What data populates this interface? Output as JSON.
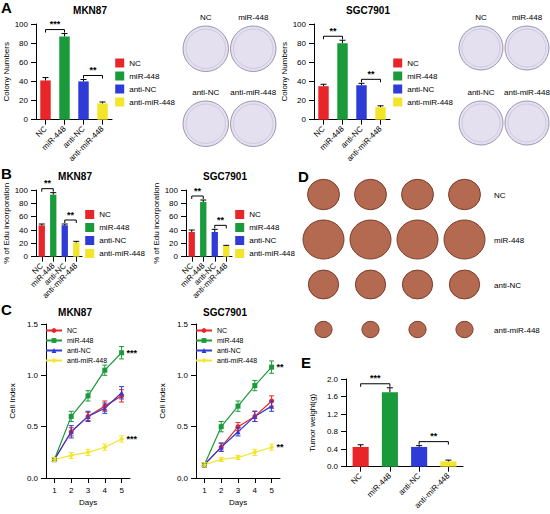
{
  "chart_data": [
    {
      "panel": "A",
      "type": "bar",
      "title": "MKN87",
      "y_label": "Colony Numbers",
      "categories": [
        "NC",
        "miR-448",
        "anti-NC",
        "anti-miR-448"
      ],
      "values": [
        41,
        87,
        40,
        17
      ],
      "errors": [
        3,
        3,
        2,
        1.5
      ],
      "colors": [
        "#e8262a",
        "#1a9a3a",
        "#2f3bd6",
        "#f2e52a"
      ],
      "ylim": [
        0,
        100
      ],
      "yticks": [
        0,
        20,
        40,
        60,
        80,
        100
      ],
      "grid": false,
      "legend": "right",
      "annotations": [
        {
          "text": "***",
          "between": [
            "NC",
            "miR-448"
          ]
        },
        {
          "text": "**",
          "between": [
            "anti-NC",
            "anti-miR-448"
          ]
        }
      ]
    },
    {
      "type": "bar",
      "title": "SGC7901",
      "y_label": "Colony Numbers",
      "categories": [
        "NC",
        "miR-448",
        "anti-NC",
        "anti-miR-448"
      ],
      "values": [
        35,
        80,
        36,
        13
      ],
      "errors": [
        2,
        3,
        2,
        1.5
      ],
      "colors": [
        "#e8262a",
        "#1a9a3a",
        "#2f3bd6",
        "#f2e52a"
      ],
      "ylim": [
        0,
        100
      ],
      "yticks": [
        0,
        20,
        40,
        60,
        80,
        100
      ],
      "grid": false,
      "legend": "right",
      "annotations": [
        {
          "text": "**",
          "between": [
            "NC",
            "miR-448"
          ]
        },
        {
          "text": "**",
          "between": [
            "anti-NC",
            "anti-miR-448"
          ]
        }
      ]
    },
    {
      "panel": "B",
      "type": "bar",
      "title": "MKN87",
      "y_label": "% of Edu incorporation",
      "categories": [
        "NC",
        "miR-448",
        "anti-NC",
        "anti-miR-448"
      ],
      "values": [
        47,
        93,
        47,
        21
      ],
      "errors": [
        2,
        3,
        2,
        2
      ],
      "colors": [
        "#e8262a",
        "#1a9a3a",
        "#2f3bd6",
        "#f2e52a"
      ],
      "ylim": [
        0,
        100
      ],
      "yticks": [
        0,
        20,
        40,
        60,
        80,
        100
      ],
      "grid": false,
      "legend": "right",
      "annotations": [
        {
          "text": "**",
          "between": [
            "NC",
            "miR-448"
          ]
        },
        {
          "text": "**",
          "between": [
            "anti-NC",
            "anti-miR-448"
          ]
        }
      ]
    },
    {
      "type": "bar",
      "title": "SGC7901",
      "y_label": "% of Edu incorporation",
      "categories": [
        "NC",
        "miR-448",
        "anti-NC",
        "anti-miR-448"
      ],
      "values": [
        37,
        82,
        37,
        16
      ],
      "errors": [
        3,
        3,
        4,
        1
      ],
      "colors": [
        "#e8262a",
        "#1a9a3a",
        "#2f3bd6",
        "#f2e52a"
      ],
      "ylim": [
        0,
        100
      ],
      "yticks": [
        0,
        20,
        40,
        60,
        80,
        100
      ],
      "grid": false,
      "legend": "right",
      "annotations": [
        {
          "text": "**",
          "between": [
            "NC",
            "miR-448"
          ]
        },
        {
          "text": "**",
          "between": [
            "anti-NC",
            "anti-miR-448"
          ]
        }
      ]
    },
    {
      "panel": "C",
      "type": "line",
      "title": "MKN87",
      "x_label": "Days",
      "y_label": "Cell Index",
      "categories": [
        "1",
        "2",
        "3",
        "4",
        "5"
      ],
      "series": [
        {
          "name": "NC",
          "color": "#e8262a",
          "marker": "circle",
          "values": [
            0.18,
            0.45,
            0.6,
            0.7,
            0.8
          ],
          "errors": [
            0.02,
            0.04,
            0.04,
            0.05,
            0.06
          ]
        },
        {
          "name": "miR-448",
          "color": "#1a9a3a",
          "marker": "square",
          "values": [
            0.18,
            0.6,
            0.8,
            1.05,
            1.22
          ],
          "errors": [
            0.02,
            0.05,
            0.05,
            0.05,
            0.06
          ]
        },
        {
          "name": "anti-NC",
          "color": "#2f3bd6",
          "marker": "triangle",
          "values": [
            0.18,
            0.45,
            0.6,
            0.68,
            0.83
          ],
          "errors": [
            0.02,
            0.06,
            0.05,
            0.05,
            0.06
          ]
        },
        {
          "name": "anti-miR-448",
          "color": "#f2e52a",
          "marker": "diamond",
          "values": [
            0.18,
            0.22,
            0.25,
            0.3,
            0.38
          ],
          "errors": [
            0.02,
            0.03,
            0.03,
            0.03,
            0.03
          ]
        }
      ],
      "ylim": [
        0,
        1.5
      ],
      "yticks": [
        {
          "value": 0,
          "label": "0.0"
        },
        0.5,
        {
          "value": 1,
          "label": "1.0"
        },
        1.5
      ],
      "grid": false,
      "legend": "upper left",
      "annotations": [
        {
          "text": "***",
          "series": "miR-448",
          "category": "5"
        },
        {
          "text": "***",
          "series": "anti-miR-448",
          "category": "5"
        }
      ]
    },
    {
      "type": "line",
      "title": "SGC7901",
      "x_label": "Days",
      "y_label": "Cell Index",
      "categories": [
        "1",
        "2",
        "3",
        "4",
        "5"
      ],
      "series": [
        {
          "name": "NC",
          "color": "#e8262a",
          "marker": "circle",
          "values": [
            0.13,
            0.3,
            0.5,
            0.6,
            0.75
          ],
          "errors": [
            0.02,
            0.04,
            0.04,
            0.05,
            0.05
          ]
        },
        {
          "name": "miR-448",
          "color": "#1a9a3a",
          "marker": "square",
          "values": [
            0.13,
            0.5,
            0.7,
            0.9,
            1.08
          ],
          "errors": [
            0.02,
            0.05,
            0.05,
            0.05,
            0.06
          ]
        },
        {
          "name": "anti-NC",
          "color": "#2f3bd6",
          "marker": "triangle",
          "values": [
            0.13,
            0.3,
            0.45,
            0.6,
            0.7
          ],
          "errors": [
            0.02,
            0.04,
            0.04,
            0.05,
            0.05
          ]
        },
        {
          "name": "anti-miR-448",
          "color": "#f2e52a",
          "marker": "diamond",
          "values": [
            0.13,
            0.18,
            0.2,
            0.25,
            0.3
          ],
          "errors": [
            0.02,
            0.02,
            0.02,
            0.03,
            0.03
          ]
        }
      ],
      "ylim": [
        0,
        1.5
      ],
      "yticks": [
        {
          "value": 0,
          "label": "0.0"
        },
        0.5,
        {
          "value": 1,
          "label": "1.0"
        },
        1.5
      ],
      "grid": false,
      "legend": "upper left",
      "annotations": [
        {
          "text": "**",
          "series": "miR-448",
          "category": "5"
        },
        {
          "text": "**",
          "series": "anti-miR-448",
          "category": "5"
        }
      ]
    },
    {
      "panel": "E",
      "type": "bar",
      "y_label": "Tumor weight(g)",
      "categories": [
        "NC",
        "miR-448",
        "anti-NC",
        "anti-miR-448"
      ],
      "values": [
        0.45,
        1.7,
        0.45,
        0.12
      ],
      "errors": [
        0.05,
        0.1,
        0.03,
        0.03
      ],
      "colors": [
        "#e8262a",
        "#1a9a3a",
        "#2f3bd6",
        "#f2e52a"
      ],
      "ylim": [
        0,
        2
      ],
      "yticks": [
        {
          "value": 0,
          "label": "0.0"
        },
        0.4,
        0.8,
        1.2,
        1.6,
        {
          "value": 2,
          "label": "2.0"
        }
      ],
      "grid": false,
      "annotations": [
        {
          "text": "***",
          "between": [
            "NC",
            "miR-448"
          ]
        },
        {
          "text": "**",
          "between": [
            "anti-NC",
            "anti-miR-448"
          ]
        }
      ]
    }
  ],
  "images": [
    {
      "labels": [
        "NC",
        "miR-448",
        "anti-NC",
        "anti-miR-448"
      ]
    },
    {
      "labels": [
        "NC",
        "miR-448",
        "anti-NC",
        "anti-miR-448"
      ]
    },
    {
      "panel": "D",
      "labels": [
        "NC",
        "miR-448",
        "anti-NC",
        "anti-miR-448"
      ]
    }
  ]
}
